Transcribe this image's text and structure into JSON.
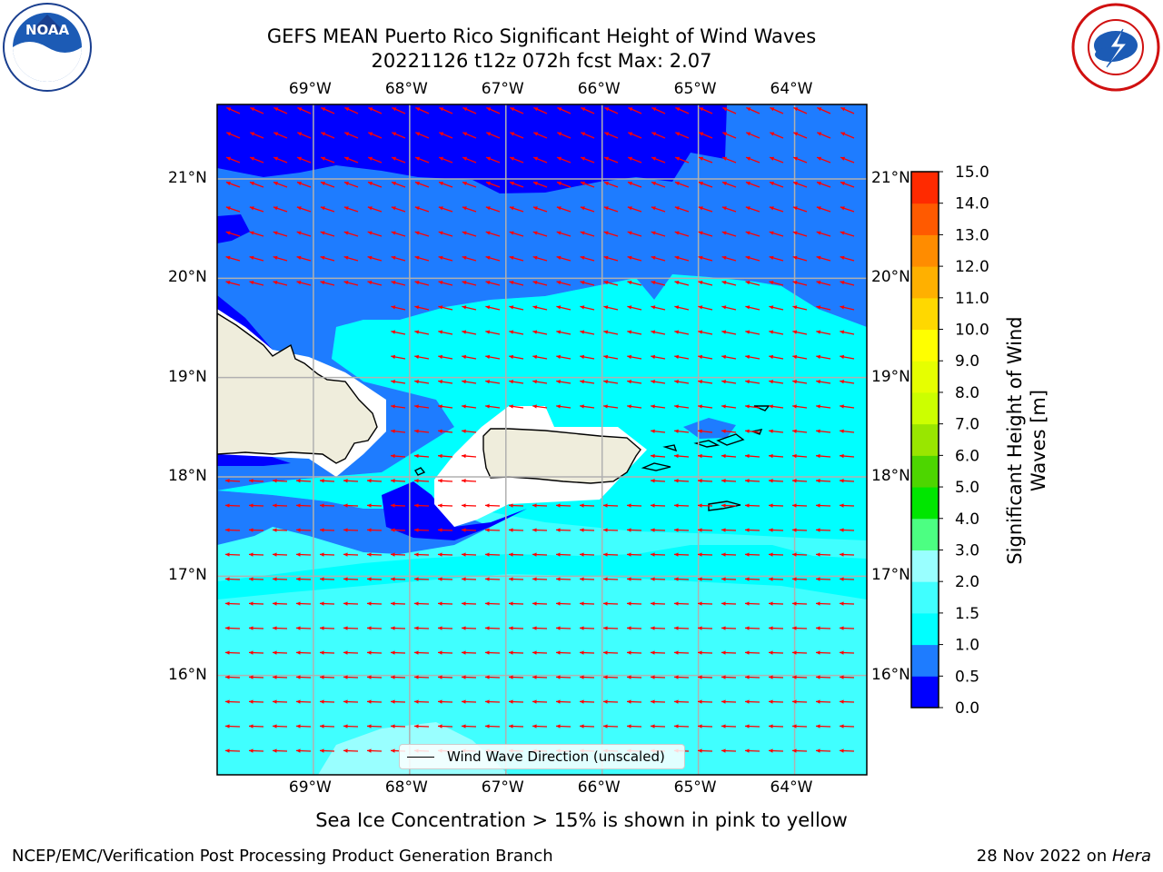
{
  "title_line1": "GEFS MEAN Puerto Rico Significant Height of Wind Waves",
  "title_line2": "20221126 t12z 072h fcst   Max: 2.07",
  "lon_labels": [
    "69°W",
    "68°W",
    "67°W",
    "66°W",
    "65°W",
    "64°W"
  ],
  "lat_labels": [
    "21°N",
    "20°N",
    "19°N",
    "18°N",
    "17°N",
    "16°N"
  ],
  "lon_values": [
    -69,
    -68,
    -67,
    -66,
    -65,
    -64
  ],
  "lat_values": [
    21,
    20,
    19,
    18,
    17,
    16
  ],
  "map_extent": {
    "lon": [
      -70,
      -63.25
    ],
    "lat": [
      15,
      21.75
    ]
  },
  "colorbar": {
    "label": "Significant Height of Wind Waves [m]",
    "ticks": [
      "0.0",
      "0.5",
      "1.0",
      "1.5",
      "2.0",
      "3.0",
      "4.0",
      "5.0",
      "6.0",
      "7.0",
      "8.0",
      "9.0",
      "10.0",
      "11.0",
      "12.0",
      "13.0",
      "14.0",
      "15.0"
    ],
    "colors": [
      "#0000ff",
      "#1e7cff",
      "#00ffff",
      "#40ffff",
      "#99ffff",
      "#4cff82",
      "#00e600",
      "#4dd600",
      "#99e600",
      "#ccff00",
      "#e6ff00",
      "#ffff00",
      "#ffd800",
      "#ffb000",
      "#ff8c00",
      "#ff5a00",
      "#ff2a00",
      "#ff0000"
    ]
  },
  "legend_label": "Wind Wave Direction (unscaled)",
  "note": "Sea Ice Concentration > 15% is shown in pink to yellow",
  "footer_left": "NCEP/EMC/Verification Post Processing Product Generation Branch",
  "footer_date": "28 Nov 2022 on ",
  "footer_host": "Hera",
  "logo_left_text": "NOAA",
  "colors": {
    "land": "#efeddc",
    "missing": "#ffffff",
    "arrow": "#ff0000",
    "grid": "#b0b0b0"
  }
}
